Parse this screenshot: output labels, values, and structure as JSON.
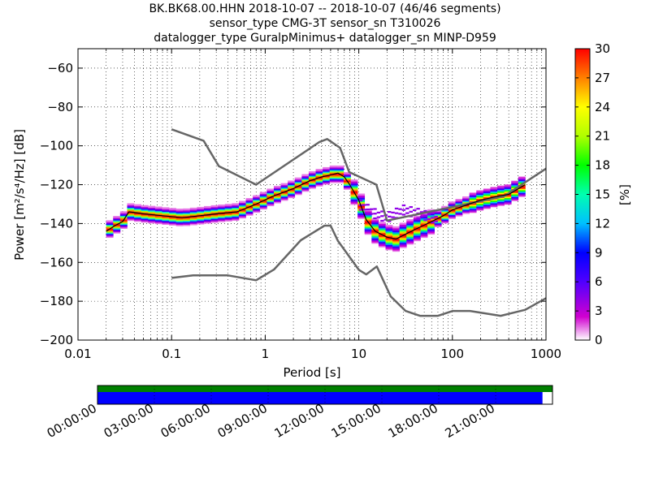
{
  "title_lines": [
    "BK.BK68.00.HHN   2018-10-07 -- 2018-10-07  (46/46 segments)",
    "sensor_type CMG-3T sensor_sn T310026",
    "datalogger_type GuralpMinimus+ datalogger_sn MINP-D959"
  ],
  "colors": {
    "curve": "#000000",
    "noise_model": "#666666",
    "coverage_top": "#008000",
    "coverage_bottom": "#0000ff"
  },
  "chart_data": {
    "type": "heatmap",
    "xlabel": "Period [s]",
    "ylabel": "Power [m²/s⁴/Hz] [dB]",
    "xscale": "log",
    "xlim": [
      0.01,
      1000
    ],
    "ylim": [
      -200,
      -50
    ],
    "x_ticks": [
      0.01,
      0.1,
      1,
      10,
      100,
      1000
    ],
    "x_tick_labels": [
      "0.01",
      "0.1",
      "1",
      "10",
      "100",
      "1000"
    ],
    "y_ticks": [
      -200,
      -180,
      -160,
      -140,
      -120,
      -100,
      -80,
      -60
    ],
    "y_tick_labels": [
      "−200",
      "−180",
      "−160",
      "−140",
      "−120",
      "−100",
      "−80",
      "−60"
    ],
    "grid": true,
    "colorbar": {
      "label": "[%]",
      "range": [
        0,
        30
      ],
      "ticks": [
        0,
        3,
        6,
        9,
        12,
        15,
        18,
        21,
        24,
        27,
        30
      ]
    },
    "high_noise_model": {
      "period": [
        0.1,
        0.22,
        0.32,
        0.8,
        3.8,
        4.6,
        6.3,
        7.9,
        15.4,
        20,
        354.8,
        10000
      ],
      "power": [
        -91.5,
        -97.4,
        -110.5,
        -120,
        -98,
        -96.5,
        -101,
        -113.5,
        -120,
        -138.5,
        -126,
        -80
      ]
    },
    "low_noise_model": {
      "period": [
        0.1,
        0.17,
        0.4,
        0.8,
        1.24,
        2.4,
        4.3,
        5,
        6,
        10,
        12,
        15.6,
        21.9,
        31.6,
        45,
        70,
        101,
        154,
        328,
        600,
        10000
      ],
      "power": [
        -168,
        -166.7,
        -166.7,
        -169.2,
        -163.7,
        -148.6,
        -141.1,
        -141.1,
        -149,
        -163.8,
        -166.2,
        -162.1,
        -177.5,
        -185,
        -187.5,
        -187.5,
        -185,
        -185,
        -187.5,
        -184.4,
        -151.5
      ]
    },
    "psd_mean": {
      "period": [
        0.02,
        0.025,
        0.03,
        0.035,
        0.05,
        0.08,
        0.13,
        0.2,
        0.3,
        0.5,
        0.8,
        1.2,
        2,
        3,
        4,
        5,
        6,
        7,
        8,
        10,
        12,
        15,
        20,
        25,
        30,
        40,
        60,
        80,
        100,
        150,
        200,
        300,
        400,
        600
      ],
      "power": [
        -144,
        -141,
        -139,
        -134,
        -135,
        -136,
        -137,
        -136,
        -135,
        -134,
        -130,
        -126,
        -122,
        -118,
        -116,
        -115,
        -114,
        -116,
        -120,
        -128,
        -138,
        -144,
        -147,
        -148,
        -146,
        -143,
        -139,
        -136,
        -133,
        -130,
        -128,
        -126,
        -125,
        -120
      ]
    },
    "secondary_distribution": {
      "period": [
        10,
        15,
        20,
        30,
        45,
        70
      ],
      "power": [
        -130,
        -135,
        -137,
        -133,
        -135,
        -138
      ]
    },
    "coverage_bar": {
      "time_labels": [
        "00:00:00",
        "03:00:00",
        "06:00:00",
        "09:00:00",
        "12:00:00",
        "15:00:00",
        "18:00:00",
        "21:00:00"
      ],
      "data_fraction_top": 1.0,
      "data_fraction_bottom": 0.978
    }
  }
}
